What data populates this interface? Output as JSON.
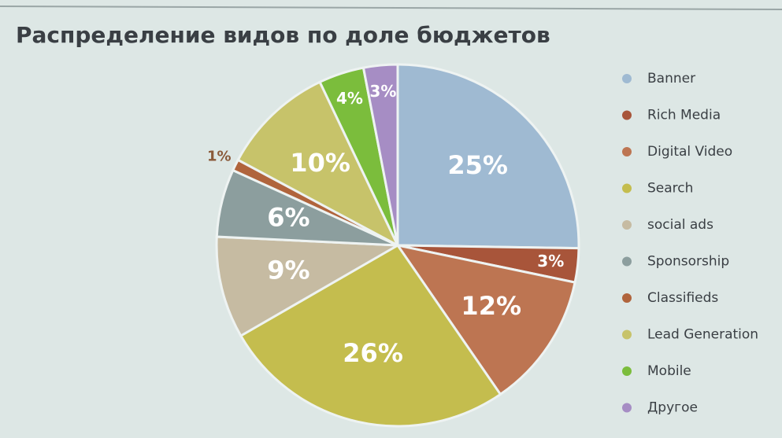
{
  "chart_data": {
    "type": "pie",
    "title": "Распределение видов по доле бюджетов",
    "categories": [
      "Banner",
      "Rich Media",
      "Digital Video",
      "Search",
      "social ads",
      "Sponsorship",
      "Classifieds",
      "Lead Generation",
      "Mobile",
      "Другое"
    ],
    "values": [
      25,
      3,
      12,
      26,
      9,
      6,
      1,
      10,
      4,
      3
    ],
    "value_labels": [
      "25%",
      "3%",
      "12%",
      "26%",
      "9%",
      "6%",
      "1%",
      "10%",
      "4%",
      "3%"
    ],
    "colors": [
      "#9fbad2",
      "#a8553a",
      "#bd7552",
      "#c4bd4e",
      "#c6bba2",
      "#8c9e9e",
      "#b0643c",
      "#c7c36a",
      "#7bbd3c",
      "#a68dc4"
    ],
    "legend": "right"
  }
}
